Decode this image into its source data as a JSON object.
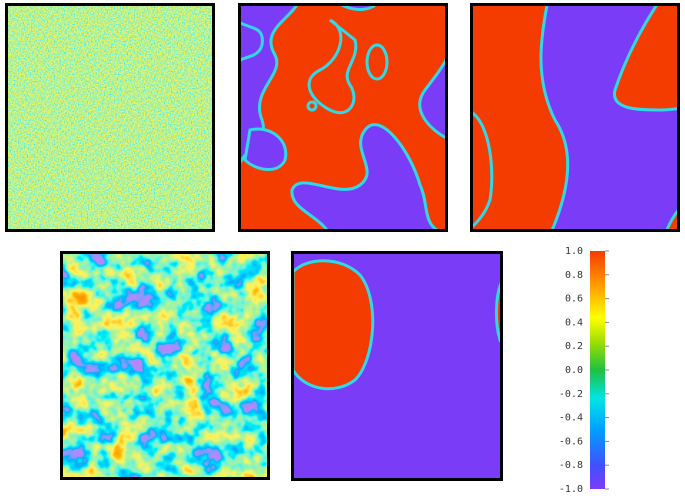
{
  "colorbar": {
    "ticks": [
      {
        "value": 1,
        "label": "1.0"
      },
      {
        "value": 0.8,
        "label": "0.8"
      },
      {
        "value": 0.6,
        "label": "0.6"
      },
      {
        "value": 0.4,
        "label": "0.4"
      },
      {
        "value": 0.2,
        "label": "0.2"
      },
      {
        "value": 0,
        "label": "0.0"
      },
      {
        "value": -0.2,
        "label": "-0.2"
      },
      {
        "value": -0.4,
        "label": "-0.4"
      },
      {
        "value": -0.6,
        "label": "-0.6"
      },
      {
        "value": -0.8,
        "label": "-0.8"
      },
      {
        "value": -1,
        "label": "-1.0"
      }
    ]
  }
}
